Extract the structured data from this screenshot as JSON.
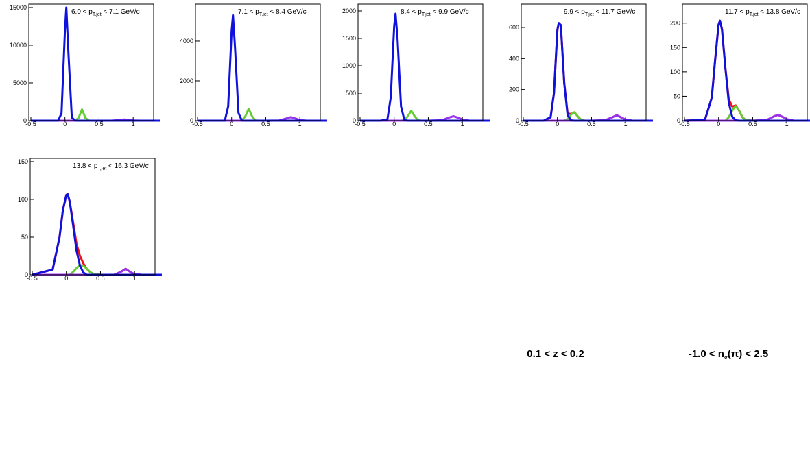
{
  "chart_data": [
    {
      "type": "line",
      "title": [
        "6.0 < p",
        "T,jet",
        " < 7.1 GeV/c"
      ],
      "x": [
        -0.5,
        -0.2,
        -0.1,
        -0.05,
        0,
        0.02,
        0.05,
        0.1,
        0.15,
        0.2,
        0.25,
        0.3,
        0.35,
        0.4,
        0.5,
        0.7,
        0.8,
        0.87,
        0.95,
        1.0,
        1.1,
        1.4
      ],
      "xlim": [
        -0.53,
        1.3
      ],
      "xticks": [
        -0.5,
        0,
        0.5,
        1
      ],
      "ylim": [
        0,
        15450
      ],
      "yticks": [
        0,
        5000,
        10000,
        15000
      ],
      "series": [
        {
          "color": "#66cc33",
          "values": [
            0,
            0,
            0,
            0,
            0,
            0,
            0,
            0,
            0,
            375,
            1500,
            375,
            6,
            0,
            0,
            0,
            0,
            0,
            0,
            0,
            0,
            0
          ]
        },
        {
          "color": "#9933ee",
          "values": [
            0,
            0,
            0,
            0,
            0,
            0,
            0,
            0,
            0,
            0,
            0,
            0,
            0,
            0,
            0,
            8,
            91,
            150,
            78,
            27,
            0,
            0
          ]
        },
        {
          "color": "#1111dd",
          "values": [
            0,
            0,
            0,
            990,
            12000,
            15000,
            9100,
            430,
            0,
            0,
            0,
            0,
            0,
            0,
            0,
            0,
            0,
            0,
            0,
            0,
            0,
            0
          ]
        }
      ]
    },
    {
      "type": "line",
      "title": [
        "7.1 < p",
        "T,jet",
        " < 8.4 GeV/c"
      ],
      "x": [
        -0.5,
        -0.2,
        -0.1,
        -0.05,
        0,
        0.02,
        0.05,
        0.1,
        0.15,
        0.2,
        0.25,
        0.3,
        0.35,
        0.4,
        0.5,
        0.7,
        0.8,
        0.87,
        0.95,
        1.0,
        1.1,
        1.4
      ],
      "xlim": [
        -0.53,
        1.3
      ],
      "xticks": [
        -0.5,
        0,
        0.5,
        1
      ],
      "ylim": [
        0,
        5860
      ],
      "yticks": [
        0,
        2000,
        4000
      ],
      "series": [
        {
          "color": "#66cc33",
          "values": [
            0,
            0,
            0,
            0,
            0,
            0,
            0,
            0,
            10,
            216,
            600,
            216,
            10,
            0,
            0,
            0,
            0,
            0,
            0,
            0,
            0,
            0
          ]
        },
        {
          "color": "#9933ee",
          "values": [
            0,
            0,
            0,
            0,
            0,
            0,
            0,
            0,
            0,
            0,
            0,
            0,
            0,
            0,
            0,
            10,
            110,
            180,
            94,
            32,
            0,
            0
          ]
        },
        {
          "color": "#1111dd",
          "values": [
            0,
            0,
            0,
            720,
            4500,
            5300,
            3660,
            390,
            5,
            0,
            0,
            0,
            0,
            0,
            0,
            0,
            0,
            0,
            0,
            0,
            0,
            0
          ]
        }
      ]
    },
    {
      "type": "line",
      "title": [
        "8.4 < p",
        "T,jet",
        " < 9.9 GeV/c"
      ],
      "x": [
        -0.5,
        -0.2,
        -0.1,
        -0.05,
        0,
        0.02,
        0.05,
        0.1,
        0.15,
        0.2,
        0.25,
        0.3,
        0.35,
        0.4,
        0.5,
        0.7,
        0.8,
        0.87,
        0.95,
        1.0,
        1.1,
        1.4
      ],
      "xlim": [
        -0.53,
        1.3
      ],
      "xticks": [
        -0.5,
        0,
        0.5,
        1
      ],
      "ylim": [
        0,
        2125
      ],
      "yticks": [
        0,
        500,
        1000,
        1500,
        2000
      ],
      "series": [
        {
          "color": "#66cc33",
          "values": [
            0,
            0,
            0,
            0,
            0,
            0,
            0,
            0,
            8,
            82,
            180,
            82,
            8,
            0,
            0,
            0,
            0,
            0,
            0,
            0,
            0,
            0
          ]
        },
        {
          "color": "#9933ee",
          "values": [
            0,
            0,
            0,
            0,
            0,
            0,
            0,
            0,
            0,
            0,
            0,
            0,
            0,
            0,
            0,
            8,
            55,
            80,
            49,
            21,
            1,
            0
          ]
        },
        {
          "color": "#1111dd",
          "values": [
            0,
            0,
            22,
            420,
            1720,
            1950,
            1470,
            260,
            11,
            0,
            0,
            0,
            0,
            0,
            0,
            0,
            0,
            0,
            0,
            0,
            0,
            0
          ]
        }
      ]
    },
    {
      "type": "line",
      "title": [
        "9.9 < p",
        "T,jet",
        " < 11.7 GeV/c"
      ],
      "x": [
        -0.5,
        -0.2,
        -0.1,
        -0.05,
        0,
        0.02,
        0.05,
        0.1,
        0.15,
        0.2,
        0.25,
        0.3,
        0.35,
        0.4,
        0.5,
        0.7,
        0.8,
        0.87,
        0.95,
        1.0,
        1.1,
        1.4
      ],
      "xlim": [
        -0.53,
        1.3
      ],
      "xticks": [
        -0.5,
        0,
        0.5,
        1
      ],
      "ylim": [
        0,
        750
      ],
      "yticks": [
        0,
        200,
        400,
        600
      ],
      "series": [
        {
          "color": "#ee1111",
          "values": [
            0,
            0,
            22,
            178,
            585,
            628,
            615,
            240,
            47,
            42,
            54,
            27,
            5,
            0,
            0,
            2,
            21,
            35,
            18,
            6,
            0,
            0
          ]
        },
        {
          "color": "#66cc33",
          "values": [
            0,
            0,
            0,
            0,
            0,
            0,
            0,
            0,
            11,
            40,
            54,
            27,
            5,
            0,
            0,
            0,
            0,
            0,
            0,
            0,
            0,
            0
          ]
        },
        {
          "color": "#9933ee",
          "values": [
            0,
            0,
            0,
            0,
            0,
            0,
            0,
            0,
            0,
            0,
            0,
            0,
            0,
            0,
            0,
            2,
            21,
            35,
            18,
            6,
            0,
            0
          ]
        },
        {
          "color": "#1111dd",
          "values": [
            0,
            0,
            22,
            178,
            585,
            628,
            615,
            240,
            36,
            2,
            0,
            0,
            0,
            0,
            0,
            0,
            0,
            0,
            0,
            0,
            0,
            0
          ]
        }
      ]
    },
    {
      "type": "line",
      "title": [
        "11.7 < p",
        "T,jet",
        " < 13.8 GeV/c"
      ],
      "x": [
        -0.5,
        -0.2,
        -0.1,
        -0.05,
        0,
        0.02,
        0.05,
        0.1,
        0.15,
        0.2,
        0.25,
        0.3,
        0.35,
        0.4,
        0.5,
        0.7,
        0.8,
        0.87,
        0.95,
        1.0,
        1.1,
        1.4
      ],
      "xlim": [
        -0.53,
        1.3
      ],
      "xticks": [
        -0.5,
        0,
        0.5,
        1
      ],
      "ylim": [
        0,
        239
      ],
      "yticks": [
        0,
        50,
        100,
        150,
        200
      ],
      "series": [
        {
          "color": "#ee1111",
          "values": [
            0,
            2,
            47,
            125,
            197,
            205,
            187,
            107,
            44,
            29,
            31,
            21,
            7,
            1,
            0,
            1,
            8,
            12,
            7,
            3,
            0,
            0
          ]
        },
        {
          "color": "#66cc33",
          "values": [
            0,
            0,
            0,
            0,
            0,
            0,
            0,
            0,
            7,
            21,
            30,
            21,
            7,
            1,
            0,
            0,
            0,
            0,
            0,
            0,
            0,
            0
          ]
        },
        {
          "color": "#9933ee",
          "values": [
            0,
            0,
            0,
            0,
            0,
            0,
            0,
            0,
            0,
            0,
            0,
            0,
            0,
            0,
            0,
            1,
            8,
            12,
            7,
            3,
            0,
            0
          ]
        },
        {
          "color": "#1111dd",
          "values": [
            0,
            1.5,
            47,
            125,
            197,
            205,
            187,
            107,
            37,
            8,
            1,
            0,
            0,
            0,
            0,
            0,
            0,
            0,
            0,
            0,
            0,
            0
          ]
        }
      ]
    },
    {
      "type": "line",
      "title": [
        "13.8 < p",
        "T,jet",
        " < 16.3 GeV/c"
      ],
      "x": [
        -0.5,
        -0.2,
        -0.1,
        -0.05,
        0,
        0.02,
        0.05,
        0.1,
        0.15,
        0.2,
        0.25,
        0.3,
        0.35,
        0.4,
        0.5,
        0.7,
        0.8,
        0.87,
        0.95,
        1.0,
        1.1,
        1.4
      ],
      "xlim": [
        -0.53,
        1.3
      ],
      "xticks": [
        -0.5,
        0,
        0.5,
        1
      ],
      "ylim": [
        0,
        154.5
      ],
      "yticks": [
        0,
        50,
        100,
        150
      ],
      "series": [
        {
          "color": "#ee1111",
          "values": [
            0,
            7,
            50,
            86,
            106,
            107,
            97,
            69,
            41,
            25,
            15,
            8,
            3.5,
            1,
            0,
            0,
            4,
            8,
            3,
            1,
            0,
            0
          ]
        },
        {
          "color": "#66cc33",
          "values": [
            0,
            0,
            0,
            0,
            0,
            0,
            0,
            4,
            9,
            13,
            12,
            8,
            3.5,
            1,
            0,
            0,
            0,
            0,
            0,
            0,
            0,
            0
          ]
        },
        {
          "color": "#9933ee",
          "values": [
            0,
            0,
            0,
            0,
            0,
            0,
            0,
            0,
            0,
            0,
            0,
            0,
            0,
            0,
            0,
            0,
            4,
            8,
            3,
            1,
            0,
            0
          ]
        },
        {
          "color": "#1111dd",
          "values": [
            0,
            7,
            50,
            86,
            106,
            107,
            97,
            65,
            32,
            12,
            3,
            0,
            0,
            0,
            0,
            0,
            0,
            0,
            0,
            0,
            0,
            0
          ]
        }
      ]
    }
  ],
  "annotations": [
    [
      "0.1 < z < 0.2"
    ],
    [
      "-1.0 < n",
      "σ",
      "(π) < 2.5"
    ]
  ]
}
